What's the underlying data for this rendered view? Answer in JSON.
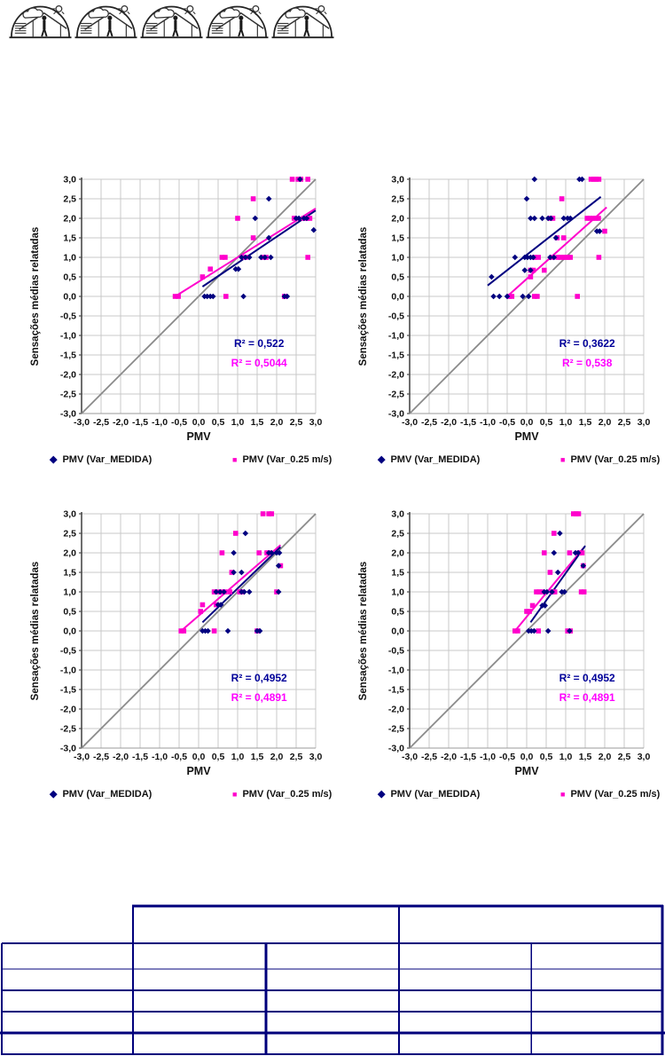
{
  "header": {
    "icon_count": 5,
    "icon_name": "dome-shelter-icon"
  },
  "chart_shared": {
    "xlabel": "PMV",
    "ylabel": "Sensações médias relatadas",
    "tick_labels": [
      "-3,0",
      "-2,5",
      "-2,0",
      "-1,5",
      "-1,0",
      "-0,5",
      "0,0",
      "0,5",
      "1,0",
      "1,5",
      "2,0",
      "2,5",
      "3,0"
    ],
    "axis_range": [
      -3,
      3
    ],
    "grid_step": 0.5,
    "legend": [
      {
        "label": "PMV (Var_MEDIDA)",
        "marker": "diamond",
        "color": "#000080"
      },
      {
        "label": "PMV (Var_0.25 m/s)",
        "marker": "square",
        "color": "#ff00cc"
      }
    ],
    "colors": {
      "blue": "#000080",
      "pink": "#ff00cc",
      "pink_text": "#ff00ff",
      "blue_text": "#000099",
      "grid": "#c9c9c9",
      "diagonal": "#8a8a8a",
      "axis": "#4a4a4a"
    }
  },
  "chart_data": [
    {
      "type": "scatter",
      "name": "top-left",
      "r2_blue": "R² = 0,522",
      "r2_pink": "R² = 0,5044",
      "series": [
        {
          "name": "PMV (Var_MEDIDA)",
          "points": [
            [
              0.15,
              0
            ],
            [
              0.22,
              0
            ],
            [
              0.3,
              0
            ],
            [
              0.37,
              0
            ],
            [
              1.15,
              0
            ],
            [
              2.2,
              0
            ],
            [
              2.27,
              0
            ],
            [
              0.95,
              0.7
            ],
            [
              1.02,
              0.7
            ],
            [
              1.1,
              1
            ],
            [
              1.2,
              1
            ],
            [
              1.3,
              1
            ],
            [
              1.6,
              1
            ],
            [
              1.7,
              1
            ],
            [
              1.85,
              1
            ],
            [
              1.8,
              1.5
            ],
            [
              1.45,
              2
            ],
            [
              2.5,
              2
            ],
            [
              2.57,
              2
            ],
            [
              2.7,
              2
            ],
            [
              2.77,
              2
            ],
            [
              1.8,
              2.5
            ],
            [
              2.95,
              1.7
            ],
            [
              2.6,
              3
            ]
          ]
        },
        {
          "name": "PMV (Var_0.25 m/s)",
          "points": [
            [
              -0.6,
              0
            ],
            [
              -0.52,
              0
            ],
            [
              0.7,
              0
            ],
            [
              2.2,
              0
            ],
            [
              0.1,
              0.5
            ],
            [
              0.3,
              0.7
            ],
            [
              0.6,
              1
            ],
            [
              0.68,
              1
            ],
            [
              1.2,
              1
            ],
            [
              1.65,
              1
            ],
            [
              1.73,
              1
            ],
            [
              2.8,
              1
            ],
            [
              1.4,
              1.5
            ],
            [
              1.0,
              2
            ],
            [
              2.45,
              2
            ],
            [
              2.7,
              2
            ],
            [
              2.78,
              2
            ],
            [
              2.85,
              2
            ],
            [
              1.4,
              2.5
            ],
            [
              2.4,
              3
            ],
            [
              2.55,
              3
            ],
            [
              2.62,
              3
            ],
            [
              2.8,
              3
            ]
          ]
        }
      ],
      "trend_blue": [
        [
          0.1,
          0.25
        ],
        [
          3.0,
          2.2
        ]
      ],
      "trend_pink": [
        [
          -0.6,
          0.0
        ],
        [
          3.0,
          2.25
        ]
      ]
    },
    {
      "type": "scatter",
      "name": "top-right",
      "r2_blue": "R² = 0,3622",
      "r2_pink": "R² = 0,538",
      "series": [
        {
          "name": "PMV (Var_MEDIDA)",
          "points": [
            [
              -0.9,
              0.5
            ],
            [
              -0.85,
              0
            ],
            [
              -0.7,
              0
            ],
            [
              -0.5,
              0
            ],
            [
              -0.1,
              0
            ],
            [
              0.05,
              0
            ],
            [
              -0.3,
              1
            ],
            [
              -0.05,
              1
            ],
            [
              0.02,
              1
            ],
            [
              0.1,
              1
            ],
            [
              0.17,
              1
            ],
            [
              0.6,
              1
            ],
            [
              0.7,
              1
            ],
            [
              -0.05,
              0.67
            ],
            [
              0.1,
              0.67
            ],
            [
              0.1,
              2
            ],
            [
              0.2,
              2
            ],
            [
              0.4,
              2
            ],
            [
              0.55,
              2
            ],
            [
              0.62,
              2
            ],
            [
              0.95,
              2
            ],
            [
              1.05,
              2
            ],
            [
              1.12,
              2
            ],
            [
              0,
              2.5
            ],
            [
              0.2,
              3
            ],
            [
              1.35,
              3
            ],
            [
              1.42,
              3
            ],
            [
              0.75,
              1.5
            ],
            [
              1.8,
              1.67
            ],
            [
              1.87,
              1.67
            ]
          ]
        },
        {
          "name": "PMV (Var_0.25 m/s)",
          "points": [
            [
              -0.45,
              0
            ],
            [
              -0.38,
              0
            ],
            [
              0.2,
              0
            ],
            [
              0.27,
              0
            ],
            [
              1.3,
              0
            ],
            [
              0.1,
              0.5
            ],
            [
              0.1,
              0.67
            ],
            [
              0.17,
              0.67
            ],
            [
              0.45,
              0.67
            ],
            [
              0.2,
              1
            ],
            [
              0.3,
              1
            ],
            [
              0.65,
              1
            ],
            [
              0.8,
              1
            ],
            [
              0.87,
              1
            ],
            [
              0.94,
              1
            ],
            [
              1.0,
              1
            ],
            [
              1.06,
              1
            ],
            [
              1.12,
              1
            ],
            [
              1.85,
              1
            ],
            [
              0.78,
              1.5
            ],
            [
              0.95,
              1.5
            ],
            [
              0.6,
              2
            ],
            [
              0.67,
              2
            ],
            [
              1.55,
              2
            ],
            [
              1.62,
              2
            ],
            [
              1.7,
              2
            ],
            [
              1.77,
              2
            ],
            [
              1.84,
              2
            ],
            [
              0.9,
              2.5
            ],
            [
              1.65,
              3
            ],
            [
              1.72,
              3
            ],
            [
              1.78,
              3
            ],
            [
              1.85,
              3
            ],
            [
              2.0,
              1.67
            ]
          ]
        }
      ],
      "trend_blue": [
        [
          -1.0,
          0.28
        ],
        [
          1.9,
          2.55
        ]
      ],
      "trend_pink": [
        [
          -0.5,
          0.0
        ],
        [
          2.05,
          2.28
        ]
      ]
    },
    {
      "type": "scatter",
      "name": "bottom-left",
      "r2_blue": "R² = 0,4952",
      "r2_pink": "R² = 0,4891",
      "series": [
        {
          "name": "PMV (Var_MEDIDA)",
          "points": [
            [
              0.1,
              0
            ],
            [
              0.17,
              0
            ],
            [
              0.24,
              0
            ],
            [
              0.75,
              0
            ],
            [
              1.5,
              0
            ],
            [
              1.57,
              0
            ],
            [
              0.5,
              0.67
            ],
            [
              0.57,
              0.67
            ],
            [
              0.45,
              1
            ],
            [
              0.55,
              1
            ],
            [
              0.65,
              1
            ],
            [
              1.1,
              1
            ],
            [
              1.17,
              1
            ],
            [
              1.3,
              1
            ],
            [
              2.05,
              1
            ],
            [
              0.9,
              1.5
            ],
            [
              1.1,
              1.5
            ],
            [
              0.9,
              2
            ],
            [
              1.8,
              2
            ],
            [
              1.87,
              2
            ],
            [
              2.0,
              2
            ],
            [
              2.07,
              2
            ],
            [
              1.2,
              2.5
            ],
            [
              2.05,
              1.67
            ]
          ]
        },
        {
          "name": "PMV (Var_0.25 m/s)",
          "points": [
            [
              -0.45,
              0
            ],
            [
              -0.38,
              0
            ],
            [
              0.4,
              0
            ],
            [
              1.5,
              0
            ],
            [
              0.05,
              0.5
            ],
            [
              0.1,
              0.67
            ],
            [
              0.45,
              0.67
            ],
            [
              0.4,
              1
            ],
            [
              0.47,
              1
            ],
            [
              0.6,
              1
            ],
            [
              0.67,
              1
            ],
            [
              0.8,
              1
            ],
            [
              1.05,
              1
            ],
            [
              1.12,
              1
            ],
            [
              2.0,
              1
            ],
            [
              0.85,
              1.5
            ],
            [
              0.6,
              2
            ],
            [
              1.55,
              2
            ],
            [
              1.75,
              2
            ],
            [
              1.82,
              2
            ],
            [
              0.95,
              2.5
            ],
            [
              1.65,
              3
            ],
            [
              1.8,
              3
            ],
            [
              1.87,
              3
            ],
            [
              2.1,
              1.67
            ]
          ]
        }
      ],
      "trend_blue": [
        [
          0.1,
          0.22
        ],
        [
          2.1,
          2.15
        ]
      ],
      "trend_pink": [
        [
          -0.45,
          0.0
        ],
        [
          2.1,
          2.2
        ]
      ]
    },
    {
      "type": "scatter",
      "name": "bottom-right",
      "r2_blue": "R² = 0,4952",
      "r2_pink": "R² = 0,4891",
      "series": [
        {
          "name": "PMV (Var_MEDIDA)",
          "points": [
            [
              0.05,
              0
            ],
            [
              0.12,
              0
            ],
            [
              0.19,
              0
            ],
            [
              0.55,
              0
            ],
            [
              1.1,
              0
            ],
            [
              0.4,
              0.65
            ],
            [
              0.47,
              0.65
            ],
            [
              0.45,
              1
            ],
            [
              0.52,
              1
            ],
            [
              0.65,
              1
            ],
            [
              0.9,
              1
            ],
            [
              0.97,
              1
            ],
            [
              0.8,
              1.5
            ],
            [
              0.7,
              2
            ],
            [
              1.25,
              2
            ],
            [
              1.32,
              2
            ],
            [
              0.85,
              2.5
            ],
            [
              1.45,
              1.67
            ]
          ]
        },
        {
          "name": "PMV (Var_0.25 m/s)",
          "points": [
            [
              -0.3,
              0
            ],
            [
              -0.23,
              0
            ],
            [
              0.3,
              0
            ],
            [
              1.05,
              0
            ],
            [
              1.12,
              0
            ],
            [
              0.0,
              0.5
            ],
            [
              0.07,
              0.5
            ],
            [
              0.15,
              0.65
            ],
            [
              0.25,
              1
            ],
            [
              0.32,
              1
            ],
            [
              0.39,
              1
            ],
            [
              0.65,
              1
            ],
            [
              0.72,
              1
            ],
            [
              1.4,
              1
            ],
            [
              1.47,
              1
            ],
            [
              0.6,
              1.5
            ],
            [
              0.45,
              2
            ],
            [
              1.1,
              2
            ],
            [
              1.35,
              2
            ],
            [
              1.42,
              2
            ],
            [
              0.7,
              2.5
            ],
            [
              1.2,
              3
            ],
            [
              1.27,
              3
            ],
            [
              1.33,
              3
            ],
            [
              1.45,
              1.67
            ]
          ]
        }
      ],
      "trend_blue": [
        [
          0.1,
          0.22
        ],
        [
          1.5,
          2.18
        ]
      ],
      "trend_pink": [
        [
          -0.3,
          0.0
        ],
        [
          1.45,
          2.12
        ]
      ]
    }
  ],
  "table": {
    "columns": 5,
    "header_groups": 2,
    "body_rows": 5,
    "cells_empty": true,
    "border_color": "#00007b"
  }
}
